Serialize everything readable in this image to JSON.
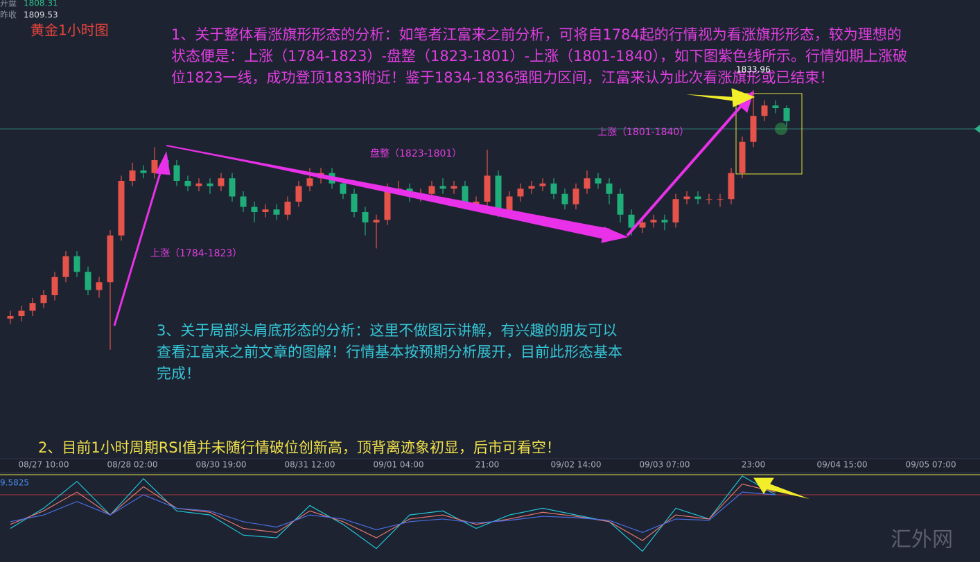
{
  "header": {
    "open_label": "开盘",
    "open_value": "1808.31",
    "prev_label": "昨收",
    "prev_value": "1809.53",
    "title": "黄金1小时图"
  },
  "annotations": {
    "note1": [
      "1、关于整体看涨旗形形态的分析：如笔者江富来之前分析，可将自1784起的行情视为看涨旗形形态，较为理想的",
      "状态便是：上涨（1784-1823）-盘整（1823-1801）-上涨（1801-1840），如下图紫色线所示。行情如期上涨破",
      "位1823一线，成功登顶1833附近！鉴于1834-1836强阻力区间，江富来认为此次看涨旗形或已结束！"
    ],
    "leg1": "上涨（1784-1823）",
    "leg2": "盘整（1823-1801）",
    "leg3": "上涨（1801-1840）",
    "high_label": "1833.96",
    "note3": [
      "3、关于局部头肩底形态的分析：这里不做图示讲解，有兴趣的朋友可以",
      "查看江富来之前文章的图解！行情基本按预期分析展开，目前此形态基本",
      "完成！"
    ],
    "note2": "2、目前1小时周期RSI值并未随行情破位创新高，顶背离迹象初显，后市可看空！",
    "rsi_label": "9.5825",
    "watermark": "汇外网"
  },
  "chart_data": [
    {
      "type": "candlestick",
      "up_color": "#e5534b",
      "down_color": "#1fae7a",
      "ylim": [
        1763.3,
        1851.3
      ],
      "categories": [
        null,
        null,
        null,
        "08/27 10:00",
        null,
        null,
        null,
        null,
        null,
        null,
        null,
        "08/28 02:00",
        null,
        null,
        null,
        null,
        null,
        null,
        null,
        "08/30 19:00",
        null,
        null,
        null,
        null,
        null,
        null,
        null,
        "08/31 12:00",
        null,
        null,
        null,
        null,
        null,
        null,
        null,
        "09/01 04:00",
        null,
        null,
        null,
        null,
        null,
        null,
        null,
        "21:00",
        null,
        null,
        null,
        null,
        null,
        null,
        null,
        "09/02 14:00",
        null,
        null,
        null,
        null,
        null,
        null,
        null,
        "09/03 07:00",
        null,
        null,
        null,
        null,
        null,
        null,
        null,
        "23:00",
        null,
        null,
        null,
        null,
        null,
        null,
        null,
        "09/04 15:00",
        null,
        null,
        null,
        null,
        null,
        null,
        null,
        "09/05 07:00",
        null,
        null,
        null,
        null
      ],
      "open": [
        1790,
        1790.5,
        1791.5,
        1793,
        1794.5,
        1798,
        1802,
        1799,
        1795.5,
        1797,
        1806,
        1816.5,
        1818.5,
        1818,
        1820.5,
        1819.5,
        1816.5,
        1815.5,
        1816,
        1815.5,
        1817,
        1813.5,
        1811.5,
        1810.5,
        1811,
        1810,
        1812.5,
        1815.5,
        1817,
        1818,
        1816,
        1814,
        1810.5,
        1808.5,
        1809,
        1815,
        1815,
        1813.5,
        1814,
        1815.5,
        1815,
        1815.5,
        1812,
        1812.5,
        1817.5,
        1810.5,
        1813.5,
        1815,
        1815.5,
        1816,
        1814,
        1812,
        1815,
        1817,
        1816,
        1814,
        1810,
        1807.5,
        1808.5,
        1809,
        1808.5,
        1813,
        1813.5,
        1813,
        1813,
        1813,
        1818,
        1824,
        1829,
        1831,
        1830.5,
        null,
        null,
        null,
        null,
        null,
        null,
        null,
        null,
        null,
        null,
        null,
        null,
        null,
        null,
        null,
        null,
        null
      ],
      "high": [
        1791.5,
        1792.5,
        1794,
        1795.5,
        1799,
        1803,
        1803,
        1800,
        1798,
        1807,
        1817.5,
        1820,
        1819.5,
        1823,
        1821.5,
        1820.5,
        1817.5,
        1817,
        1817,
        1818,
        1818,
        1814.5,
        1812.5,
        1812,
        1812,
        1813.5,
        1816.5,
        1819,
        1819,
        1819,
        1817,
        1815,
        1811.5,
        1810,
        1816,
        1816.5,
        1816,
        1815,
        1816.5,
        1817,
        1816.5,
        1816.5,
        1813.5,
        1822.5,
        1818.5,
        1814.5,
        1816,
        1816.5,
        1817,
        1817,
        1815,
        1816,
        1818.5,
        1818,
        1817,
        1815,
        1811,
        1809.5,
        1810,
        1810,
        1814,
        1814.5,
        1814.5,
        1814,
        1814,
        1819,
        1825,
        1833.96,
        1832,
        1832,
        1831,
        null,
        null,
        null,
        null,
        null,
        null,
        null,
        null,
        null,
        null,
        null,
        null,
        null,
        null,
        null,
        null,
        null
      ],
      "low": [
        1789,
        1789.5,
        1790.5,
        1792,
        1793.5,
        1797,
        1798,
        1794.5,
        1794,
        1784,
        1805,
        1815.5,
        1817,
        1817,
        1818.5,
        1815.5,
        1814.5,
        1814.5,
        1814,
        1814.5,
        1812.5,
        1810.5,
        1808.5,
        1809.5,
        1809,
        1809,
        1811.5,
        1814.5,
        1816,
        1815,
        1813,
        1809.5,
        1806,
        1803.5,
        1808,
        1814,
        1812.5,
        1812.5,
        1813,
        1814,
        1814,
        1811,
        1811,
        1811.5,
        1809.5,
        1809.5,
        1812.5,
        1814,
        1814.5,
        1813,
        1811,
        1811,
        1814,
        1815,
        1812,
        1808.5,
        1806,
        1806.5,
        1807.5,
        1807,
        1807.5,
        1812,
        1812,
        1812,
        1811.5,
        1812,
        1817,
        1823,
        1828,
        1829.5,
        1827,
        null,
        null,
        null,
        null,
        null,
        null,
        null,
        null,
        null,
        null,
        null,
        null,
        null,
        null,
        null,
        null,
        null
      ],
      "close": [
        1790.5,
        1791.5,
        1793,
        1794.5,
        1798,
        1802,
        1799,
        1795.5,
        1797,
        1806,
        1816.5,
        1818.5,
        1818,
        1820.5,
        1819.5,
        1816.5,
        1815.5,
        1816,
        1815.5,
        1817,
        1813.5,
        1811.5,
        1810.5,
        1811,
        1810,
        1812.5,
        1815.5,
        1817,
        1818,
        1816,
        1814,
        1810.5,
        1808.5,
        1809,
        1815,
        1815,
        1813.5,
        1814,
        1815.5,
        1815,
        1815.5,
        1812,
        1812.5,
        1817.5,
        1810.5,
        1813.5,
        1815,
        1815.5,
        1816,
        1814,
        1812,
        1815,
        1817,
        1816,
        1814,
        1810,
        1807.5,
        1808.5,
        1809,
        1808.5,
        1813,
        1813.5,
        1813,
        1813,
        1813,
        1818,
        1824,
        1829,
        1831,
        1830.5,
        1828,
        null,
        null,
        null,
        null,
        null,
        null,
        null,
        null,
        null,
        null,
        null,
        null,
        null,
        null,
        null,
        null,
        null
      ]
    },
    {
      "type": "line",
      "xlim": [
        -0.5,
        87.5
      ],
      "ylim": [
        20,
        86
      ],
      "hlines": [
        {
          "value": 85,
          "color": "#e8e04a"
        },
        {
          "value": 70,
          "color": "#b0393b"
        }
      ],
      "x": [
        0,
        3,
        6,
        9,
        12,
        15,
        18,
        21,
        24,
        27,
        30,
        33,
        36,
        39,
        42,
        45,
        48,
        51,
        54,
        57,
        60,
        63,
        66,
        69
      ],
      "series": [
        {
          "color": "#22c4d6",
          "values": [
            45,
            60,
            80,
            55,
            82,
            58,
            55,
            40,
            38,
            62,
            48,
            30,
            55,
            58,
            45,
            55,
            60,
            55,
            50,
            28,
            60,
            52,
            84,
            70
          ]
        },
        {
          "color": "#e3776f",
          "values": [
            48,
            58,
            72,
            55,
            76,
            60,
            57,
            45,
            42,
            58,
            50,
            38,
            52,
            55,
            48,
            52,
            57,
            54,
            50,
            36,
            55,
            52,
            78,
            72
          ]
        },
        {
          "color": "#4a6fe3",
          "values": [
            50,
            55,
            65,
            55,
            70,
            60,
            58,
            50,
            46,
            55,
            52,
            44,
            50,
            52,
            49,
            51,
            54,
            53,
            51,
            42,
            52,
            51,
            72,
            70
          ]
        }
      ]
    }
  ]
}
